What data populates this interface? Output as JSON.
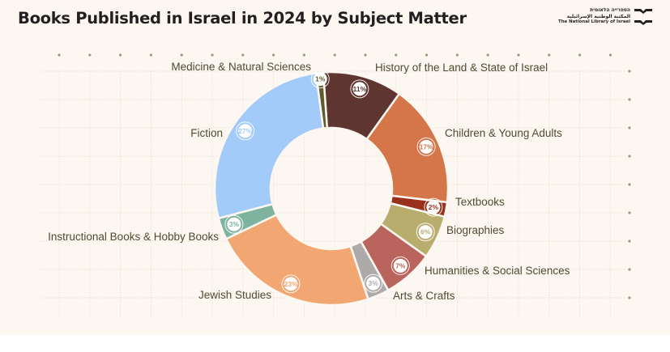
{
  "header": {
    "title": "Books Published in Israel in 2024 by Subject Matter",
    "logo": {
      "hebrew": "הספרייה הלאומית",
      "arabic": "المكتبة الوطنية الإسرائيلية",
      "english": "The National Library of Israel",
      "icon": "bookmark-chevron-icon"
    }
  },
  "chart_data": {
    "type": "pie",
    "variant": "donut",
    "title": "Books Published in Israel in 2024 by Subject Matter",
    "unit": "%",
    "legend": "none (direct labels around slices)",
    "order": "clockwise from top",
    "slices": [
      {
        "label": "History of the Land & State of Israel",
        "value": 11,
        "color": "#5e3530"
      },
      {
        "label": "Children & Young Adults",
        "value": 17,
        "color": "#d4764a"
      },
      {
        "label": "Textbooks",
        "value": 2,
        "color": "#98301b"
      },
      {
        "label": "Biographies",
        "value": 6,
        "color": "#b9ad6e"
      },
      {
        "label": "Humanities & Social Sciences",
        "value": 7,
        "color": "#b9645d"
      },
      {
        "label": "Arts & Crafts",
        "value": 3,
        "color": "#aeaaa9"
      },
      {
        "label": "Jewish Studies",
        "value": 23,
        "color": "#f2a671"
      },
      {
        "label": "Instructional Books & Hobby Books",
        "value": 3,
        "color": "#7eb39f"
      },
      {
        "label": "Fiction",
        "value": 27,
        "color": "#a3cbf9"
      },
      {
        "label": "Medicine & Natural Sciences",
        "value": 1,
        "color": "#5f5b2c"
      }
    ]
  },
  "colors": {
    "background": "#fcf8f1",
    "grid_dot": "#9b9a7d",
    "label_text": "#4e4a33",
    "title_text": "#231f20"
  }
}
